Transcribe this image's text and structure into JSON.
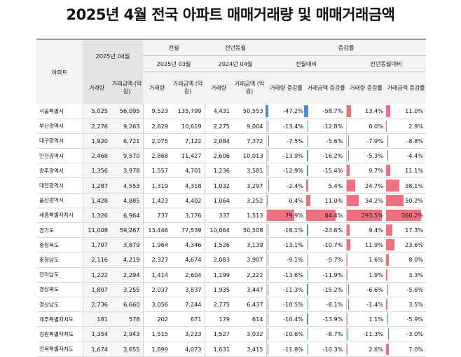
{
  "title": "2025년 4월 전국 아파트 매매거래량 및 매매거래금액",
  "headers": {
    "region": "아파트",
    "current_period": "2025년 04월",
    "prev_month_group": "전월",
    "prev_year_group": "전년동월",
    "change_group": "증감률",
    "prev_month_period": "2025년 03월",
    "prev_year_period": "2024년 04월",
    "mom_label": "전월대비",
    "yoy_label": "전년동월대비",
    "volume": "거래량",
    "amount": "거래금액 (억 원)",
    "volume_rate": "거래량 증감률",
    "amount_rate": "거래금액 증감률"
  },
  "rows": [
    {
      "region": "서울특별시",
      "v": "5,025",
      "a": "56,095",
      "pv": "9,523",
      "pa": "135,799",
      "yv": "4,431",
      "ya": "50,553",
      "mv": "-47.2%",
      "ma": "-58.7%",
      "yvr": "13.4%",
      "yar": "11.0%",
      "mv_n": -47.2,
      "ma_n": -58.7,
      "yvr_n": 13.4,
      "yar_n": 11.0
    },
    {
      "region": "부산광역시",
      "v": "2,276",
      "a": "9,263",
      "pv": "2,629",
      "pa": "10,619",
      "yv": "2,275",
      "ya": "9,004",
      "mv": "-13.4%",
      "ma": "-12.8%",
      "yvr": "0.0%",
      "yar": "2.9%",
      "mv_n": -13.4,
      "ma_n": -12.8,
      "yvr_n": 0.0,
      "yar_n": 2.9
    },
    {
      "region": "대구광역시",
      "v": "1,920",
      "a": "6,721",
      "pv": "2,075",
      "pa": "7,122",
      "yv": "2,084",
      "ya": "7,372",
      "mv": "-7.5%",
      "ma": "-5.6%",
      "yvr": "-7.9%",
      "yar": "-8.8%",
      "mv_n": -7.5,
      "ma_n": -5.6,
      "yvr_n": -7.9,
      "yar_n": -8.8
    },
    {
      "region": "인천광역시",
      "v": "2,468",
      "a": "9,570",
      "pv": "2,868",
      "pa": "11,427",
      "yv": "2,606",
      "ya": "10,013",
      "mv": "-13.9%",
      "ma": "-16.2%",
      "yvr": "-5.3%",
      "yar": "-4.4%",
      "mv_n": -13.9,
      "ma_n": -16.2,
      "yvr_n": -5.3,
      "yar_n": -4.4
    },
    {
      "region": "광주광역시",
      "v": "1,356",
      "a": "3,978",
      "pv": "1,557",
      "pa": "4,701",
      "yv": "1,236",
      "ya": "3,581",
      "mv": "-12.9%",
      "ma": "-15.4%",
      "yvr": "9.7%",
      "yar": "11.1%",
      "mv_n": -12.9,
      "ma_n": -15.4,
      "yvr_n": 9.7,
      "yar_n": 11.1
    },
    {
      "region": "대전광역시",
      "v": "1,287",
      "a": "4,553",
      "pv": "1,319",
      "pa": "4,318",
      "yv": "1,032",
      "ya": "3,297",
      "mv": "-2.4%",
      "ma": "5.4%",
      "yvr": "24.7%",
      "yar": "38.1%",
      "mv_n": -2.4,
      "ma_n": 5.4,
      "yvr_n": 24.7,
      "yar_n": 38.1
    },
    {
      "region": "울산광역시",
      "v": "1,428",
      "a": "4,885",
      "pv": "1,423",
      "pa": "4,402",
      "yv": "1,064",
      "ya": "3,252",
      "mv": "0.4%",
      "ma": "11.0%",
      "yvr": "34.2%",
      "yar": "50.2%",
      "mv_n": 0.4,
      "ma_n": 11.0,
      "yvr_n": 34.2,
      "yar_n": 50.2
    },
    {
      "region": "세종특별자치시",
      "v": "1,326",
      "a": "6,964",
      "pv": "737",
      "pa": "3,776",
      "yv": "337",
      "ya": "1,513",
      "mv": "79.9%",
      "ma": "84.4%",
      "yvr": "293.5%",
      "yar": "360.2%",
      "mv_n": 79.9,
      "ma_n": 84.4,
      "yvr_n": 293.5,
      "yar_n": 360.2
    },
    {
      "region": "경기도",
      "v": "11,008",
      "a": "59,267",
      "pv": "13,446",
      "pa": "77,539",
      "yv": "10,064",
      "ya": "50,508",
      "mv": "-18.1%",
      "ma": "-23.6%",
      "yvr": "9.4%",
      "yar": "17.3%",
      "mv_n": -18.1,
      "ma_n": -23.6,
      "yvr_n": 9.4,
      "yar_n": 17.3
    },
    {
      "region": "충청북도",
      "v": "1,707",
      "a": "3,879",
      "pv": "1,964",
      "pa": "4,346",
      "yv": "1,526",
      "ya": "3,139",
      "mv": "-13.1%",
      "ma": "-10.7%",
      "yvr": "11.9%",
      "yar": "23.6%",
      "mv_n": -13.1,
      "ma_n": -10.7,
      "yvr_n": 11.9,
      "yar_n": 23.6
    },
    {
      "region": "충청남도",
      "v": "2,116",
      "a": "4,219",
      "pv": "2,327",
      "pa": "4,674",
      "yv": "2,083",
      "ya": "3,907",
      "mv": "-9.1%",
      "ma": "-9.7%",
      "yvr": "1.6%",
      "yar": "8.0%",
      "mv_n": -9.1,
      "ma_n": -9.7,
      "yvr_n": 1.6,
      "yar_n": 8.0
    },
    {
      "region": "전라남도",
      "v": "1,222",
      "a": "2,294",
      "pv": "1,414",
      "pa": "2,604",
      "yv": "1,199",
      "ya": "2,222",
      "mv": "-13.6%",
      "ma": "-11.9%",
      "yvr": "1.9%",
      "yar": "3.3%",
      "mv_n": -13.6,
      "ma_n": -11.9,
      "yvr_n": 1.9,
      "yar_n": 3.3
    },
    {
      "region": "경상북도",
      "v": "1,807",
      "a": "3,255",
      "pv": "2,037",
      "pa": "3,837",
      "yv": "1,935",
      "ya": "3,447",
      "mv": "-11.3%",
      "ma": "-15.2%",
      "yvr": "-6.6%",
      "yar": "-5.6%",
      "mv_n": -11.3,
      "ma_n": -15.2,
      "yvr_n": -6.6,
      "yar_n": -5.6
    },
    {
      "region": "경상남도",
      "v": "2,736",
      "a": "6,660",
      "pv": "3,056",
      "pa": "7,244",
      "yv": "2,775",
      "ya": "6,437",
      "mv": "-10.5%",
      "ma": "-8.1%",
      "yvr": "-1.4%",
      "yar": "3.5%",
      "mv_n": -10.5,
      "ma_n": -8.1,
      "yvr_n": -1.4,
      "yar_n": 3.5
    },
    {
      "region": "제주특별자치도",
      "v": "181",
      "a": "578",
      "pv": "202",
      "pa": "671",
      "yv": "179",
      "ya": "614",
      "mv": "-10.4%",
      "ma": "-13.9%",
      "yvr": "1.1%",
      "yar": "-5.9%",
      "mv_n": -10.4,
      "ma_n": -13.9,
      "yvr_n": 1.1,
      "yar_n": -5.9
    },
    {
      "region": "강원특별자치도",
      "v": "1,354",
      "a": "2,943",
      "pv": "1,515",
      "pa": "3,223",
      "yv": "1,527",
      "ya": "3,032",
      "mv": "-10.6%",
      "ma": "-8.7%",
      "yvr": "-11.3%",
      "yar": "-3.0%",
      "mv_n": -10.6,
      "ma_n": -8.7,
      "yvr_n": -11.3,
      "yar_n": -3.0
    },
    {
      "region": "전북특별자치도",
      "v": "1,674",
      "a": "3,655",
      "pv": "1,899",
      "pa": "4,073",
      "yv": "1,631",
      "ya": "3,415",
      "mv": "-11.8%",
      "ma": "-10.3%",
      "yvr": "2.6%",
      "yar": "7.0%",
      "mv_n": -11.8,
      "ma_n": -10.3,
      "yvr_n": 2.6,
      "yar_n": 7.0
    }
  ],
  "colors": {
    "negative_bar": "#4a90d9",
    "positive_bar": "#f07080",
    "header_grey": "#e4e4e4"
  }
}
